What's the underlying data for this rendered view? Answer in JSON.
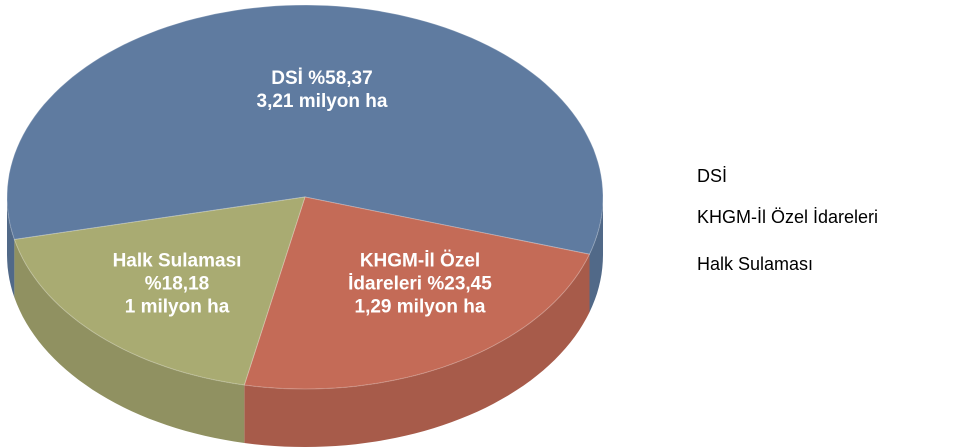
{
  "chart_data": {
    "type": "pie",
    "categories": [
      "DSİ",
      "KHGM-İl Özel İdareleri",
      "Halk Sulaması"
    ],
    "values": [
      58.37,
      23.45,
      18.18
    ],
    "value_labels": [
      "%58,37",
      "%23,45",
      "%18,18"
    ],
    "area_labels": [
      "3,21 milyon ha",
      "1,29 milyon ha",
      "1 milyon ha"
    ],
    "colors": [
      "#5f7ba0",
      "#c46b57",
      "#a9ab72"
    ],
    "legend": "right"
  }
}
